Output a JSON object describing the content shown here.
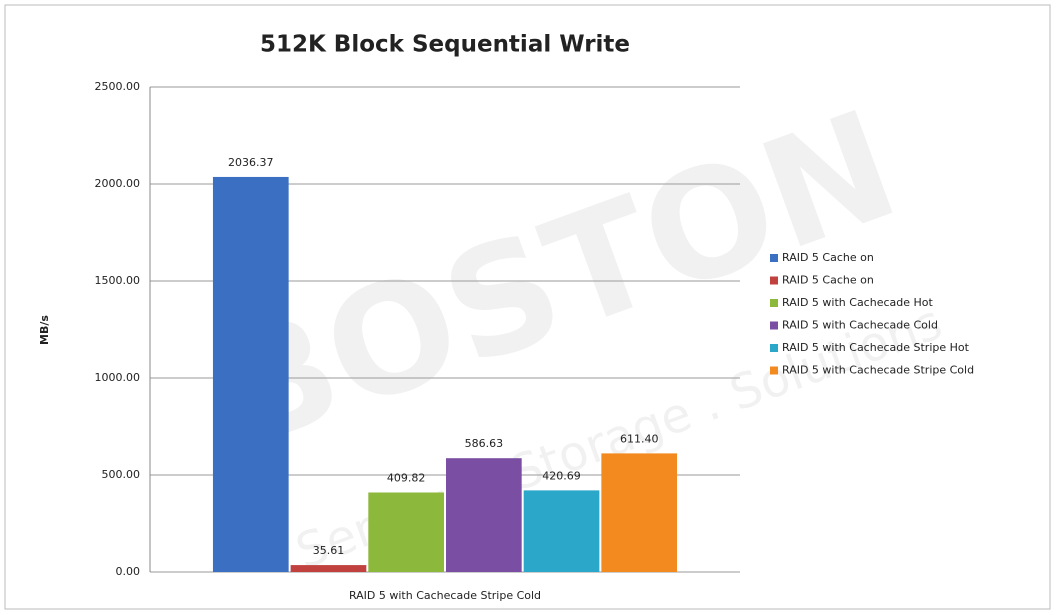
{
  "chart_data": {
    "type": "bar",
    "title": "512K Block Sequential Write",
    "y_label": "MB/s",
    "watermark": "BOSTON",
    "watermark_subtitle": "Servers . Storage . Solutions",
    "categories": [
      "RAID 5 with Cachecade Stripe Cold"
    ],
    "series": [
      {
        "name": "RAID 5 Cache on",
        "color": "#3b6fc1",
        "values": [
          2036.37
        ]
      },
      {
        "name": "RAID 5 Cache on",
        "color": "#c0413d",
        "values": [
          35.61
        ]
      },
      {
        "name": "RAID 5 with Cachecade Hot",
        "color": "#8cb83c",
        "values": [
          409.82
        ]
      },
      {
        "name": "RAID 5 with Cachecade Cold",
        "color": "#7a4ea3",
        "values": [
          586.63
        ]
      },
      {
        "name": "RAID 5 with Cachecade Stripe Hot",
        "color": "#2aa7c9",
        "values": [
          420.69
        ]
      },
      {
        "name": "RAID 5 with Cachecade Stripe Cold",
        "color": "#f28a1f",
        "values": [
          611.4
        ],
        "value_labels": [
          "611.40"
        ]
      }
    ],
    "ylim": [
      0,
      2500
    ],
    "yticks": [
      {
        "value": 0,
        "label": "0.00"
      },
      {
        "value": 500,
        "label": "500.00"
      },
      {
        "value": 1000,
        "label": "1000.00"
      },
      {
        "value": 1500,
        "label": "1500.00"
      },
      {
        "value": 2000,
        "label": "2000.00"
      },
      {
        "value": 2500,
        "label": "2500.00"
      }
    ],
    "grid": true,
    "legend": "right"
  }
}
